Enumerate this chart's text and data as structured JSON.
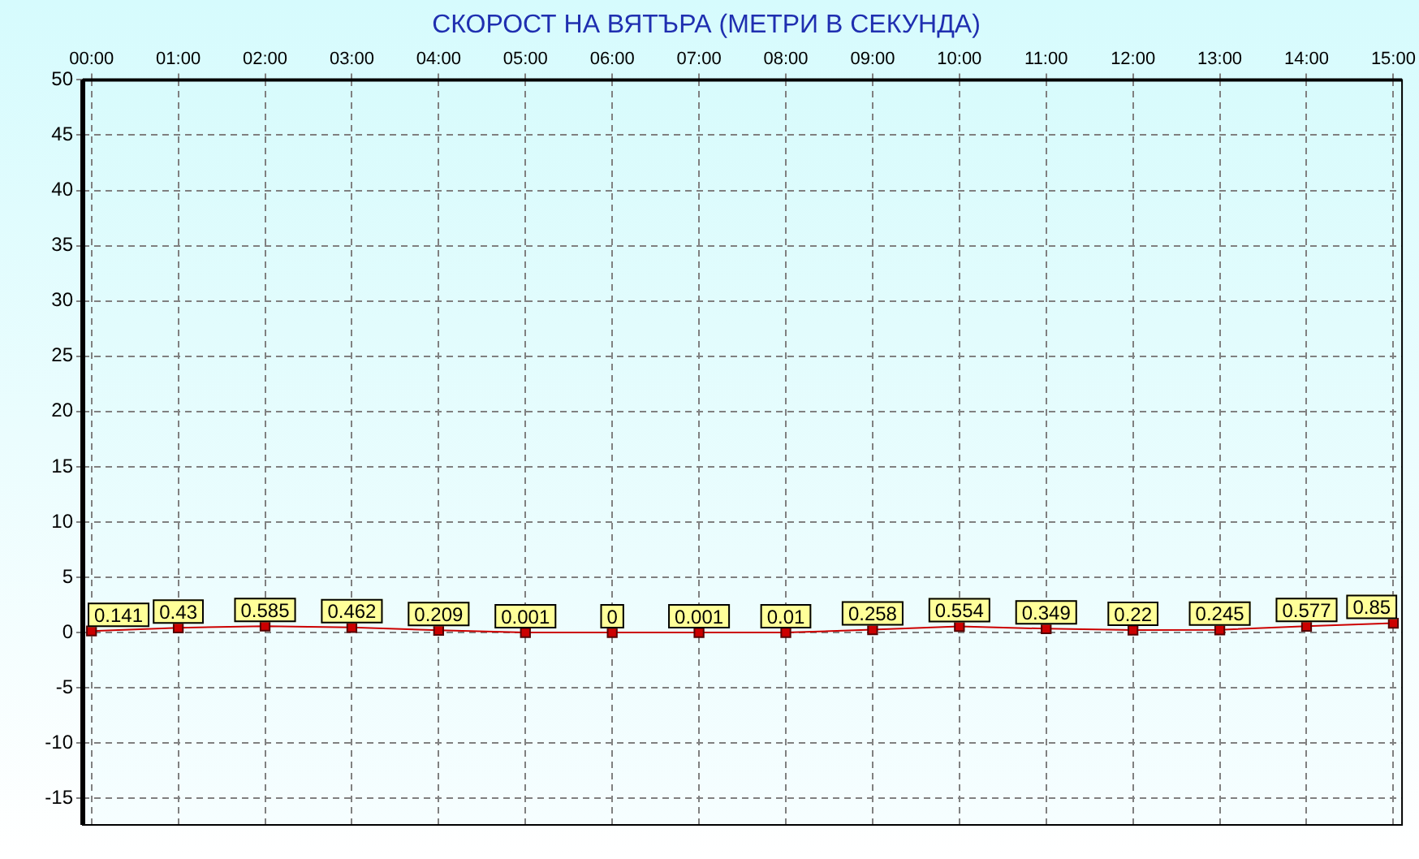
{
  "chart_data": {
    "type": "line",
    "title": "СКОРОСТ НА ВЯТЪРА (МЕТРИ В СЕКУНДА)",
    "x": [
      0,
      1,
      2,
      3,
      4,
      5,
      6,
      7,
      8,
      9,
      10,
      11,
      12,
      13,
      14,
      15
    ],
    "series": [
      {
        "color": "#cc0000",
        "values": [
          0.141,
          0.43,
          0.585,
          0.462,
          0.209,
          0.001,
          0,
          0.001,
          0.01,
          0.258,
          0.554,
          0.349,
          0.22,
          0.245,
          0.577,
          0.85
        ]
      }
    ],
    "xlim": [
      -0.1,
      15.1
    ],
    "xticks": [
      {
        "value": 0,
        "label": "00:00"
      },
      {
        "value": 1,
        "label": "01:00"
      },
      {
        "value": 2,
        "label": "02:00"
      },
      {
        "value": 3,
        "label": "03:00"
      },
      {
        "value": 4,
        "label": "04:00"
      },
      {
        "value": 5,
        "label": "05:00"
      },
      {
        "value": 6,
        "label": "06:00"
      },
      {
        "value": 7,
        "label": "07:00"
      },
      {
        "value": 8,
        "label": "08:00"
      },
      {
        "value": 9,
        "label": "09:00"
      },
      {
        "value": 10,
        "label": "10:00"
      },
      {
        "value": 11,
        "label": "11:00"
      },
      {
        "value": 12,
        "label": "12:00"
      },
      {
        "value": 13,
        "label": "13:00"
      },
      {
        "value": 14,
        "label": "14:00"
      },
      {
        "value": 15,
        "label": "15:00"
      }
    ],
    "ylim": [
      -17.4,
      50
    ],
    "yticks": [
      -15,
      -10,
      -5,
      0,
      5,
      10,
      15,
      20,
      25,
      30,
      35,
      40,
      45,
      50
    ],
    "grid": true,
    "legend": false,
    "marker": "square",
    "line_style": "solid",
    "data_labels": true
  }
}
